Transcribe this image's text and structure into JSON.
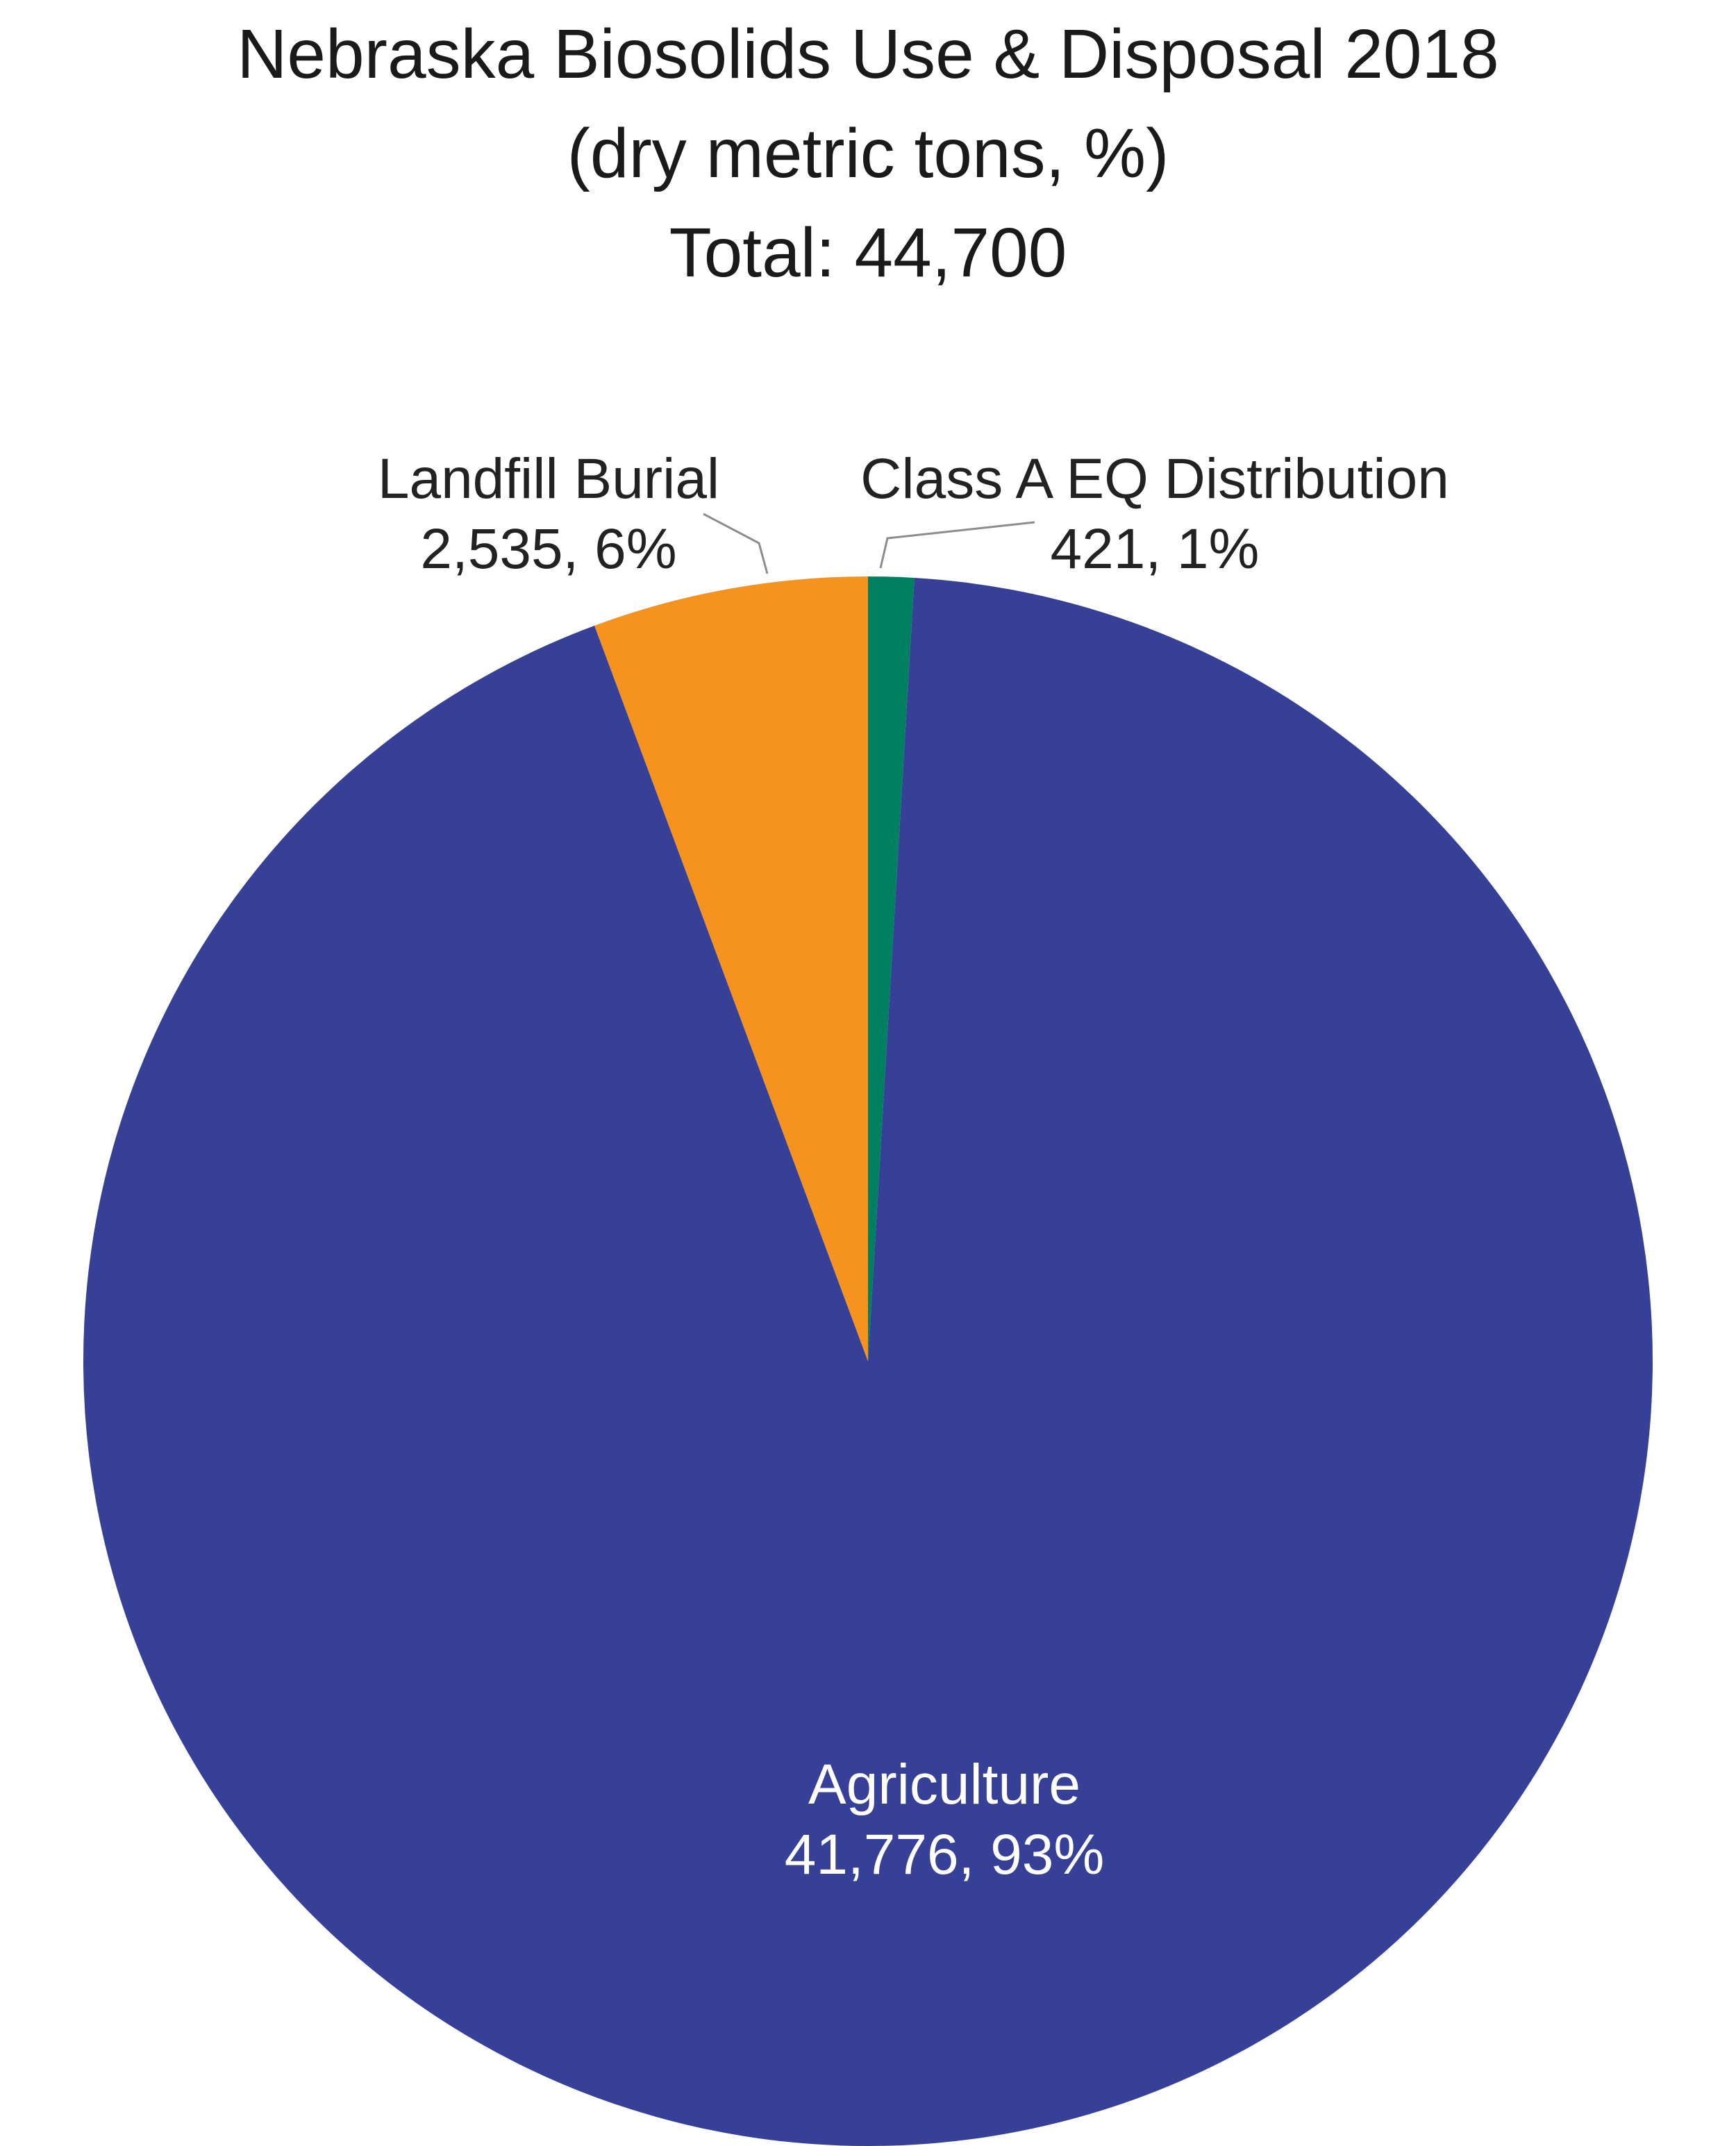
{
  "chart_data": {
    "type": "pie",
    "title_lines": [
      "Nebraska Biosolids Use & Disposal 2018",
      "(dry metric tons, %)",
      "Total: 44,700"
    ],
    "total": 44700,
    "start": "12 o'clock",
    "direction": "clockwise",
    "slices": [
      {
        "name": "Class A EQ Distribution",
        "value": 421,
        "percent": 1,
        "value_label": "421, 1%",
        "color": "#008060"
      },
      {
        "name": "Agriculture",
        "value": 41776,
        "percent": 93,
        "value_label": "41,776, 93%",
        "color": "#374097"
      },
      {
        "name": "Landfill Burial",
        "value": 2535,
        "percent": 6,
        "value_label": "2,535, 6%",
        "color": "#f6921e"
      }
    ]
  }
}
